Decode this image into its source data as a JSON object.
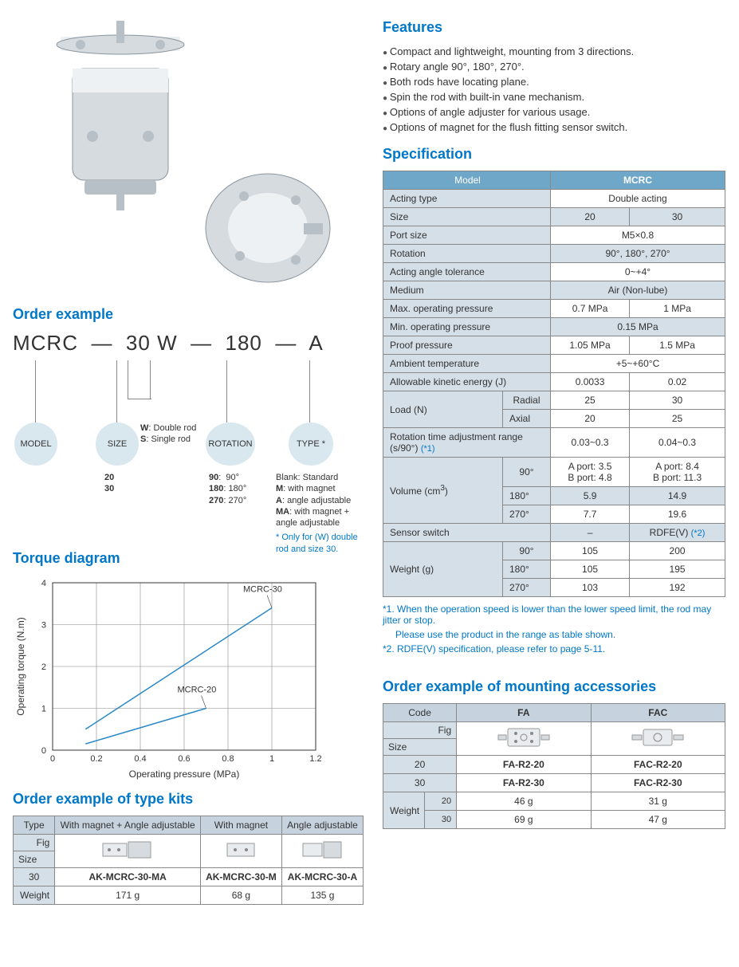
{
  "features": {
    "heading": "Features",
    "items": [
      "Compact and lightweight, mounting from 3 directions.",
      "Rotary angle 90°, 180°, 270°.",
      "Both rods have locating plane.",
      "Spin the rod with built-in vane mechanism.",
      "Options of angle adjuster for various usage.",
      "Options of magnet for the flush fitting sensor switch."
    ]
  },
  "order_example": {
    "heading": "Order example",
    "code_parts": {
      "model": "MCRC",
      "sep1": "—",
      "size": "30",
      "rod": "W",
      "sep2": "—",
      "rotation": "180",
      "sep3": "—",
      "type": "A"
    },
    "pills": {
      "model": "MODEL",
      "size": "SIZE",
      "rod_desc_w": "W: Double rod",
      "rod_desc_s": "S: Single rod",
      "rotation": "ROTATION",
      "type": "TYPE *"
    },
    "size_opts": [
      "20",
      "30"
    ],
    "rotation_opts": [
      {
        "k": "90",
        "v": "90°"
      },
      {
        "k": "180",
        "v": "180°"
      },
      {
        "k": "270",
        "v": "270°"
      }
    ],
    "type_opts": [
      {
        "k": "Blank",
        "v": "Standard"
      },
      {
        "k": "M",
        "v": "with magnet"
      },
      {
        "k": "A",
        "v": "angle adjustable"
      },
      {
        "k": "MA",
        "v": "with magnet + angle adjustable"
      }
    ],
    "type_note": "* Only for (W) double rod and size 30."
  },
  "torque": {
    "heading": "Torque diagram",
    "chart": {
      "type": "line",
      "xlabel": "Operating pressure (MPa)",
      "ylabel": "Operating torque (N.m)",
      "xlim": [
        0,
        1.2
      ],
      "ylim": [
        0,
        4
      ],
      "xticks": [
        0,
        0.2,
        0.4,
        0.6,
        0.8,
        1.0,
        1.2
      ],
      "yticks": [
        0,
        1,
        2,
        3,
        4
      ],
      "grid_color": "#888",
      "line_color": "#2a88c7",
      "line_width": 1.5,
      "bg": "#ffffff",
      "label_fontsize": 12,
      "series": [
        {
          "name": "MCRC-30",
          "x": [
            0.15,
            1.0
          ],
          "y": [
            0.5,
            3.4
          ]
        },
        {
          "name": "MCRC-20",
          "x": [
            0.15,
            0.7
          ],
          "y": [
            0.15,
            1.0
          ]
        }
      ]
    }
  },
  "specification": {
    "heading": "Specification",
    "header_model": "Model",
    "header_mcrc": "MCRC",
    "rows": {
      "acting_type": {
        "label": "Acting type",
        "val": "Double acting"
      },
      "size": {
        "label": "Size",
        "v1": "20",
        "v2": "30"
      },
      "port_size": {
        "label": "Port size",
        "val": "M5×0.8"
      },
      "rotation": {
        "label": "Rotation",
        "val": "90°, 180°, 270°"
      },
      "tol": {
        "label": "Acting angle tolerance",
        "val": "0~+4°"
      },
      "medium": {
        "label": "Medium",
        "val": "Air (Non-lube)"
      },
      "maxp": {
        "label": "Max. operating pressure",
        "v1": "0.7 MPa",
        "v2": "1 MPa"
      },
      "minp": {
        "label": "Min. operating pressure",
        "val": "0.15 MPa"
      },
      "proof": {
        "label": "Proof pressure",
        "v1": "1.05 MPa",
        "v2": "1.5 MPa"
      },
      "temp": {
        "label": "Ambient temperature",
        "val": "+5~+60°C"
      },
      "ake": {
        "label": "Allowable kinetic energy (J)",
        "v1": "0.0033",
        "v2": "0.02"
      },
      "load": {
        "label": "Load (N)",
        "sub": [
          {
            "k": "Radial",
            "v1": "25",
            "v2": "30"
          },
          {
            "k": "Axial",
            "v1": "20",
            "v2": "25"
          }
        ]
      },
      "rot_time": {
        "label": "Rotation time adjustment range (s/90°) (*1)",
        "v1": "0.03~0.3",
        "v2": "0.04~0.3",
        "note_ref": "(*1)"
      },
      "volume": {
        "label": "Volume (cm³)",
        "unit_sup": "3",
        "sub": [
          {
            "k": "90°",
            "v1": "A port: 3.5\nB port: 4.8",
            "v2": "A port: 8.4\nB port: 11.3"
          },
          {
            "k": "180°",
            "v1": "5.9",
            "v2": "14.9"
          },
          {
            "k": "270°",
            "v1": "7.7",
            "v2": "19.6"
          }
        ]
      },
      "sensor": {
        "label": "Sensor switch",
        "v1": "–",
        "v2": "RDFE(V) (*2)",
        "note_ref": "(*2)"
      },
      "weight": {
        "label": "Weight (g)",
        "sub": [
          {
            "k": "90°",
            "v1": "105",
            "v2": "200"
          },
          {
            "k": "180°",
            "v1": "105",
            "v2": "195"
          },
          {
            "k": "270°",
            "v1": "103",
            "v2": "192"
          }
        ]
      }
    },
    "footnotes": [
      "*1. When the operation speed is lower than the lower speed limit, the rod may jitter or stop.",
      "Please use the product in the range as table shown.",
      "*2. RDFE(V) specification, please refer to page 5-11."
    ]
  },
  "type_kits": {
    "heading": "Order example of type kits",
    "headers": {
      "type": "Type",
      "c1": "With magnet + Angle adjustable",
      "c2": "With magnet",
      "c3": "Angle adjustable"
    },
    "fig_label": "Fig",
    "size_label": "Size",
    "size": "30",
    "codes": {
      "c1": "AK-MCRC-30-MA",
      "c2": "AK-MCRC-30-M",
      "c3": "AK-MCRC-30-A"
    },
    "weight_label": "Weight",
    "weights": {
      "c1": "171 g",
      "c2": "68 g",
      "c3": "135 g"
    }
  },
  "mounting": {
    "heading": "Order example of mounting accessories",
    "headers": {
      "code": "Code",
      "c1": "FA",
      "c2": "FAC"
    },
    "fig_label": "Fig",
    "size_label": "Size",
    "rows": [
      {
        "size": "20",
        "c1": "FA-R2-20",
        "c2": "FAC-R2-20"
      },
      {
        "size": "30",
        "c1": "FA-R2-30",
        "c2": "FAC-R2-30"
      }
    ],
    "weight_label": "Weight",
    "w20": {
      "size": "20",
      "c1": "46 g",
      "c2": "31 g"
    },
    "w30": {
      "size": "30",
      "c1": "69 g",
      "c2": "47 g"
    }
  },
  "colors": {
    "heading": "#0077c8",
    "table_header": "#6fa7c9",
    "table_label": "#d4dfe8",
    "border": "#888888",
    "chart_line": "#2a88c7"
  }
}
